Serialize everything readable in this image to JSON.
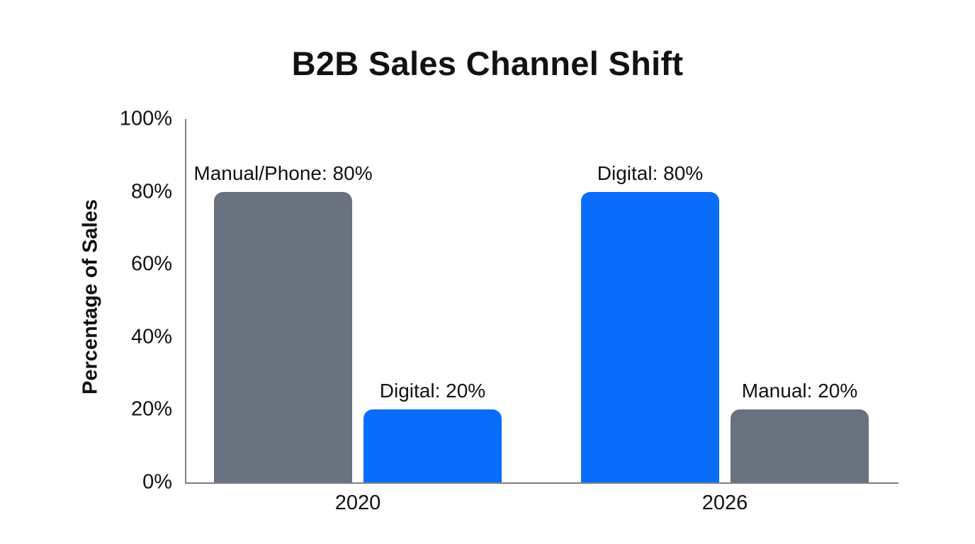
{
  "colors": {
    "gray": "#6a7280",
    "blue": "#0a6dfa",
    "axis": "#7d8084",
    "text": "#121212",
    "background": "#ffffff"
  },
  "chart_data": {
    "type": "bar",
    "title": "B2B Sales Channel Shift",
    "xlabel": "",
    "ylabel": "Percentage of Sales",
    "ylim": [
      0,
      100
    ],
    "grid": false,
    "legend": "none",
    "yticks": [
      0,
      20,
      40,
      60,
      80,
      100
    ],
    "ytick_labels": [
      "0%",
      "20%",
      "40%",
      "60%",
      "80%",
      "100%"
    ],
    "categories": [
      "2020",
      "2026"
    ],
    "series": [
      {
        "name": "Manual/Phone",
        "values": [
          80,
          20
        ]
      },
      {
        "name": "Digital",
        "values": [
          20,
          80
        ]
      }
    ],
    "groups": [
      {
        "category": "2020",
        "bars": [
          {
            "name": "Manual/Phone",
            "value": 80,
            "label": "Manual/Phone: 80%",
            "color_key": "gray"
          },
          {
            "name": "Digital",
            "value": 20,
            "label": "Digital: 20%",
            "color_key": "blue"
          }
        ]
      },
      {
        "category": "2026",
        "bars": [
          {
            "name": "Digital",
            "value": 80,
            "label": "Digital: 80%",
            "color_key": "blue"
          },
          {
            "name": "Manual",
            "value": 20,
            "label": "Manual: 20%",
            "color_key": "gray"
          }
        ]
      }
    ]
  }
}
